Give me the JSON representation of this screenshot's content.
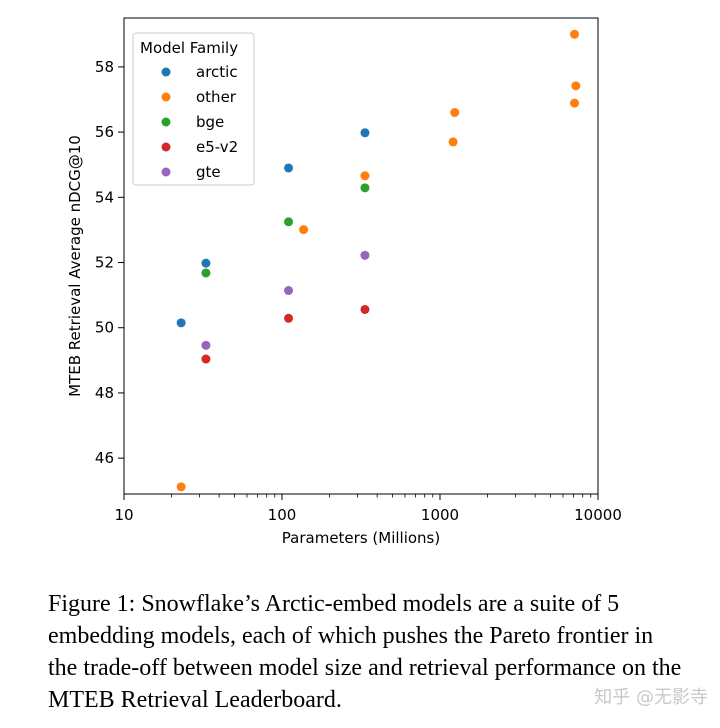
{
  "chart_data": {
    "type": "scatter",
    "xlabel": "Parameters (Millions)",
    "ylabel": "MTEB Retrieval Average nDCG@10",
    "xscale": "log",
    "xlim": [
      10,
      10000
    ],
    "ylim": [
      44.9,
      59.5
    ],
    "xticks": [
      10,
      100,
      1000,
      10000
    ],
    "xtick_labels": [
      "10",
      "100",
      "1000",
      "10000"
    ],
    "yticks": [
      46,
      48,
      50,
      52,
      54,
      56,
      58
    ],
    "ytick_labels": [
      "46",
      "48",
      "50",
      "52",
      "54",
      "56",
      "58"
    ],
    "grid": false,
    "legend": {
      "title": "Model Family",
      "placement": "top-left",
      "entries": [
        "arctic",
        "other",
        "bge",
        "e5-v2",
        "gte"
      ]
    },
    "series": [
      {
        "name": "arctic",
        "color": "#1f77b4",
        "points": [
          [
            23,
            50.15
          ],
          [
            33,
            51.98
          ],
          [
            110,
            54.9
          ],
          [
            335,
            55.98
          ]
        ]
      },
      {
        "name": "other",
        "color": "#ff7f0e",
        "points": [
          [
            23,
            45.12
          ],
          [
            137,
            53.01
          ],
          [
            335,
            54.66
          ],
          [
            1210,
            55.7
          ],
          [
            1240,
            56.6
          ],
          [
            7100,
            59.0
          ],
          [
            7240,
            57.42
          ],
          [
            7100,
            56.89
          ]
        ]
      },
      {
        "name": "bge",
        "color": "#2ca02c",
        "points": [
          [
            33,
            51.68
          ],
          [
            110,
            53.25
          ],
          [
            335,
            54.29
          ]
        ]
      },
      {
        "name": "e5-v2",
        "color": "#d62728",
        "points": [
          [
            33,
            49.04
          ],
          [
            110,
            50.29
          ],
          [
            335,
            50.56
          ]
        ]
      },
      {
        "name": "gte",
        "color": "#9467bd",
        "points": [
          [
            33,
            49.46
          ],
          [
            110,
            51.14
          ],
          [
            335,
            52.22
          ]
        ]
      }
    ]
  },
  "caption": "Figure 1: Snowflake’s Arctic-embed models are a suite of 5 embedding models, each of which pushes the Pareto frontier in the trade-off between model size and retrieval performance on the MTEB Retrieval Leaderboard.",
  "watermark": "知乎 @无影寺"
}
